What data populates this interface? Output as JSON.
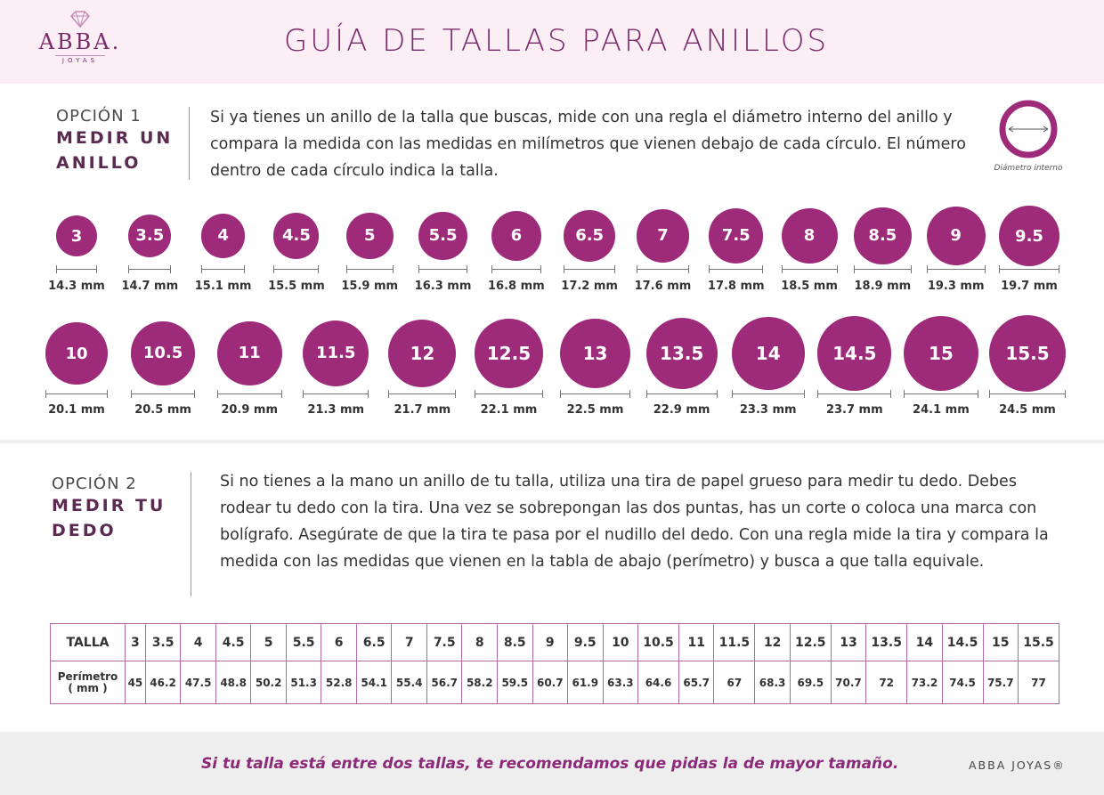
{
  "header": {
    "brand": "ABBA.",
    "brand_sub": "JOYAS",
    "title": "GUÍA DE TALLAS PARA ANILLOS"
  },
  "option1": {
    "label": "OPCIÓN 1",
    "name": "MEDIR UN\nANILLO",
    "text": "Si ya tienes un anillo de la talla que buscas, mide con una regla el diámetro interno del anillo y compara la medida con las medidas en milímetros que vienen debajo de cada círculo. El número dentro de cada círculo indica la talla.",
    "icon_caption": "Diámetro interno"
  },
  "sizes_row1": [
    {
      "size": "3",
      "mm": "14.3 mm"
    },
    {
      "size": "3.5",
      "mm": "14.7 mm"
    },
    {
      "size": "4",
      "mm": "15.1 mm"
    },
    {
      "size": "4.5",
      "mm": "15.5 mm"
    },
    {
      "size": "5",
      "mm": "15.9 mm"
    },
    {
      "size": "5.5",
      "mm": "16.3 mm"
    },
    {
      "size": "6",
      "mm": "16.8 mm"
    },
    {
      "size": "6.5",
      "mm": "17.2 mm"
    },
    {
      "size": "7",
      "mm": "17.6 mm"
    },
    {
      "size": "7.5",
      "mm": "17.8 mm"
    },
    {
      "size": "8",
      "mm": "18.5 mm"
    },
    {
      "size": "8.5",
      "mm": "18.9 mm"
    },
    {
      "size": "9",
      "mm": "19.3 mm"
    },
    {
      "size": "9.5",
      "mm": "19.7 mm"
    }
  ],
  "sizes_row2": [
    {
      "size": "10",
      "mm": "20.1 mm"
    },
    {
      "size": "10.5",
      "mm": "20.5 mm"
    },
    {
      "size": "11",
      "mm": "20.9 mm"
    },
    {
      "size": "11.5",
      "mm": "21.3 mm"
    },
    {
      "size": "12",
      "mm": "21.7 mm"
    },
    {
      "size": "12.5",
      "mm": "22.1 mm"
    },
    {
      "size": "13",
      "mm": "22.5 mm"
    },
    {
      "size": "13.5",
      "mm": "22.9 mm"
    },
    {
      "size": "14",
      "mm": "23.3 mm"
    },
    {
      "size": "14.5",
      "mm": "23.7 mm"
    },
    {
      "size": "15",
      "mm": "24.1 mm"
    },
    {
      "size": "15.5",
      "mm": "24.5 mm"
    }
  ],
  "option2": {
    "label": "OPCIÓN 2",
    "name": "MEDIR TU\nDEDO",
    "text": "Si no tienes a la mano un anillo de tu talla, utiliza una tira de papel grueso para medir tu dedo. Debes rodear tu dedo con la tira. Una vez se sobrepongan las dos puntas, has un corte o coloca una marca con bolígrafo. Asegúrate de que la tira te pasa por el nudillo del dedo. Con una regla mide la tira y compara la medida con las medidas que vienen en la tabla de abajo (perímetro) y busca a que talla equivale."
  },
  "table": {
    "row1_header": "TALLA",
    "row2_header": "Perímetro\n( mm )",
    "tallas": [
      "3",
      "3.5",
      "4",
      "4.5",
      "5",
      "5.5",
      "6",
      "6.5",
      "7",
      "7.5",
      "8",
      "8.5",
      "9",
      "9.5",
      "10",
      "10.5",
      "11",
      "11.5",
      "12",
      "12.5",
      "13",
      "13.5",
      "14",
      "14.5",
      "15",
      "15.5"
    ],
    "perimetros": [
      "45",
      "46.2",
      "47.5",
      "48.8",
      "50.2",
      "51.3",
      "52.8",
      "54.1",
      "55.4",
      "56.7",
      "58.2",
      "59.5",
      "60.7",
      "61.9",
      "63.3",
      "64.6",
      "65.7",
      "67",
      "68.3",
      "69.5",
      "70.7",
      "72",
      "73.2",
      "74.5",
      "75.7",
      "77"
    ]
  },
  "footer": {
    "message": "Si tu talla está entre dos tallas, te recomendamos que pidas la de mayor tamaño.",
    "brand": "ABBA JOYAS®"
  },
  "colors": {
    "accent": "#9e2a7a",
    "header_bg": "#fbeff5",
    "footer_bg": "#eeeeee"
  }
}
